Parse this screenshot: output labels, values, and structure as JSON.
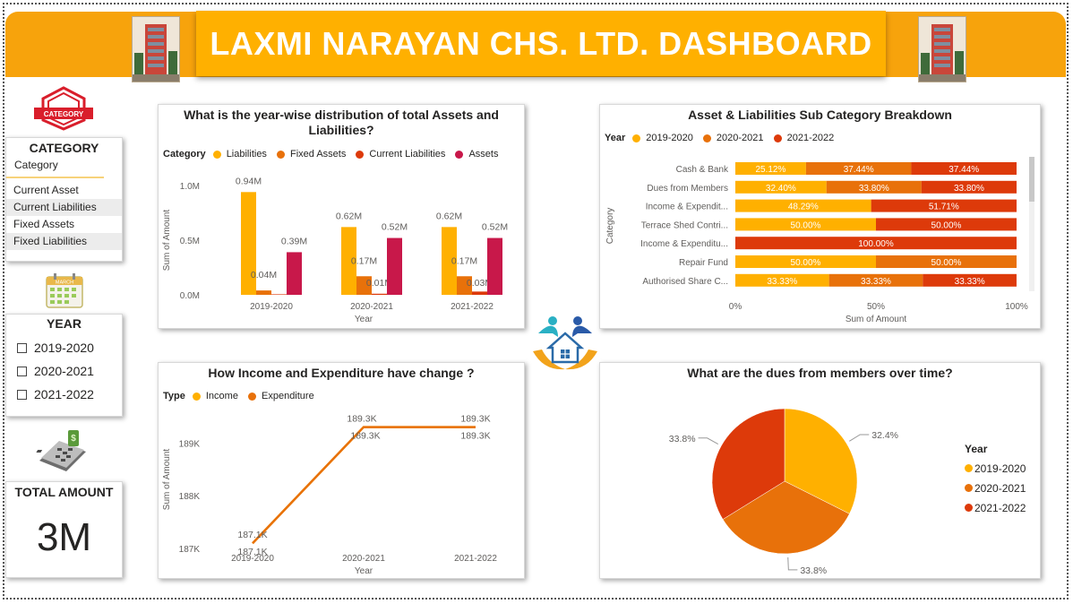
{
  "header": {
    "title": "LAXMI NARAYAN CHS. LTD. DASHBOARD"
  },
  "category_slicer": {
    "badge": "CATEGORY",
    "title": "CATEGORY",
    "field": "Category",
    "items": [
      "Current Asset",
      "Current Liabilities",
      "Fixed Assets",
      "Fixed Liabilities"
    ]
  },
  "calendar_badge": "MARCH",
  "year_slicer": {
    "title": "YEAR",
    "items": [
      "2019-2020",
      "2020-2021",
      "2021-2022"
    ]
  },
  "total_card": {
    "title": "TOTAL AMOUNT",
    "value": "3M"
  },
  "colors": {
    "liabilities": "#ffb000",
    "fixed_assets": "#e8710a",
    "current_liabilities": "#dd3a0a",
    "assets": "#c8184a",
    "y1920": "#ffb000",
    "y2021": "#e8710a",
    "y2122": "#dd3a0a",
    "header": "#f7a30c"
  },
  "bar_panel": {
    "title": "What is the year-wise distribution of total Assets and Liabilities?",
    "legend_title": "Category",
    "legend": [
      "Liabilities",
      "Fixed Assets",
      "Current Liabilities",
      "Assets"
    ],
    "ylabel": "Sum of Amount",
    "xlabel": "Year"
  },
  "sub_panel": {
    "title": "Asset & Liabilities Sub Category Breakdown",
    "legend_title": "Year",
    "legend": [
      "2019-2020",
      "2020-2021",
      "2021-2022"
    ],
    "ylabel": "Category",
    "xlabel": "Sum of Amount"
  },
  "line_panel": {
    "title": "How Income and Expenditure have change ?",
    "legend_title": "Type",
    "legend": [
      "Income",
      "Expenditure"
    ],
    "ylabel": "Sum of Amount",
    "xlabel": "Year"
  },
  "pie_panel": {
    "title": "What are the dues from members over time?",
    "legend_title": "Year",
    "legend": [
      "2019-2020",
      "2020-2021",
      "2021-2022"
    ]
  },
  "chart_data": [
    {
      "type": "bar",
      "categories": [
        "2019-2020",
        "2020-2021",
        "2021-2022"
      ],
      "series": [
        {
          "name": "Liabilities",
          "values": [
            0.94,
            0.62,
            0.62
          ],
          "labels": [
            "0.94M",
            "0.62M",
            "0.62M"
          ]
        },
        {
          "name": "Fixed Assets",
          "values": [
            0.04,
            0.17,
            0.17
          ],
          "labels": [
            "0.04M",
            "0.17M",
            "0.17M"
          ]
        },
        {
          "name": "Current Liabilities",
          "values": [
            0.005,
            0.01,
            0.03
          ],
          "labels": [
            "",
            "0.01M",
            "0.03M"
          ]
        },
        {
          "name": "Assets",
          "values": [
            0.39,
            0.52,
            0.52
          ],
          "labels": [
            "0.39M",
            "0.52M",
            "0.52M"
          ]
        }
      ],
      "yticks": [
        "0.0M",
        "0.5M",
        "1.0M"
      ],
      "ylim": [
        0,
        1.0
      ],
      "xlabel": "Year",
      "ylabel": "Sum of Amount"
    },
    {
      "type": "bar",
      "orientation": "horizontal-100%-stacked",
      "categories": [
        "Cash & Bank",
        "Dues from Members",
        "Income & Expendit...",
        "Terrace Shed Contri...",
        "Income & Expenditu...",
        "Repair Fund",
        "Authorised Share C..."
      ],
      "series": [
        {
          "name": "2019-2020",
          "values": [
            25.12,
            32.4,
            48.29,
            50.0,
            0,
            50.0,
            33.33
          ]
        },
        {
          "name": "2020-2021",
          "values": [
            37.44,
            33.8,
            0,
            0,
            0,
            50.0,
            33.33
          ]
        },
        {
          "name": "2021-2022",
          "values": [
            37.44,
            33.8,
            51.71,
            50.0,
            100.0,
            0,
            33.33
          ]
        }
      ],
      "xticks": [
        "0%",
        "50%",
        "100%"
      ],
      "xlabel": "Sum of Amount",
      "ylabel": "Category"
    },
    {
      "type": "line",
      "x": [
        "2019-2020",
        "2020-2021",
        "2021-2022"
      ],
      "series": [
        {
          "name": "Income",
          "values": [
            187.1,
            189.3,
            189.3
          ]
        },
        {
          "name": "Expenditure",
          "values": [
            187.1,
            189.3,
            189.3
          ]
        }
      ],
      "point_labels": [
        "187.1K",
        "189.3K",
        "189.3K"
      ],
      "yticks": [
        "187K",
        "188K",
        "189K"
      ],
      "ylim": [
        186.9,
        189.7
      ],
      "xlabel": "Year",
      "ylabel": "Sum of Amount"
    },
    {
      "type": "pie",
      "categories": [
        "2019-2020",
        "2020-2021",
        "2021-2022"
      ],
      "values": [
        32.4,
        33.8,
        33.8
      ],
      "labels": [
        "32.4%",
        "33.8%",
        "33.8%"
      ]
    }
  ]
}
